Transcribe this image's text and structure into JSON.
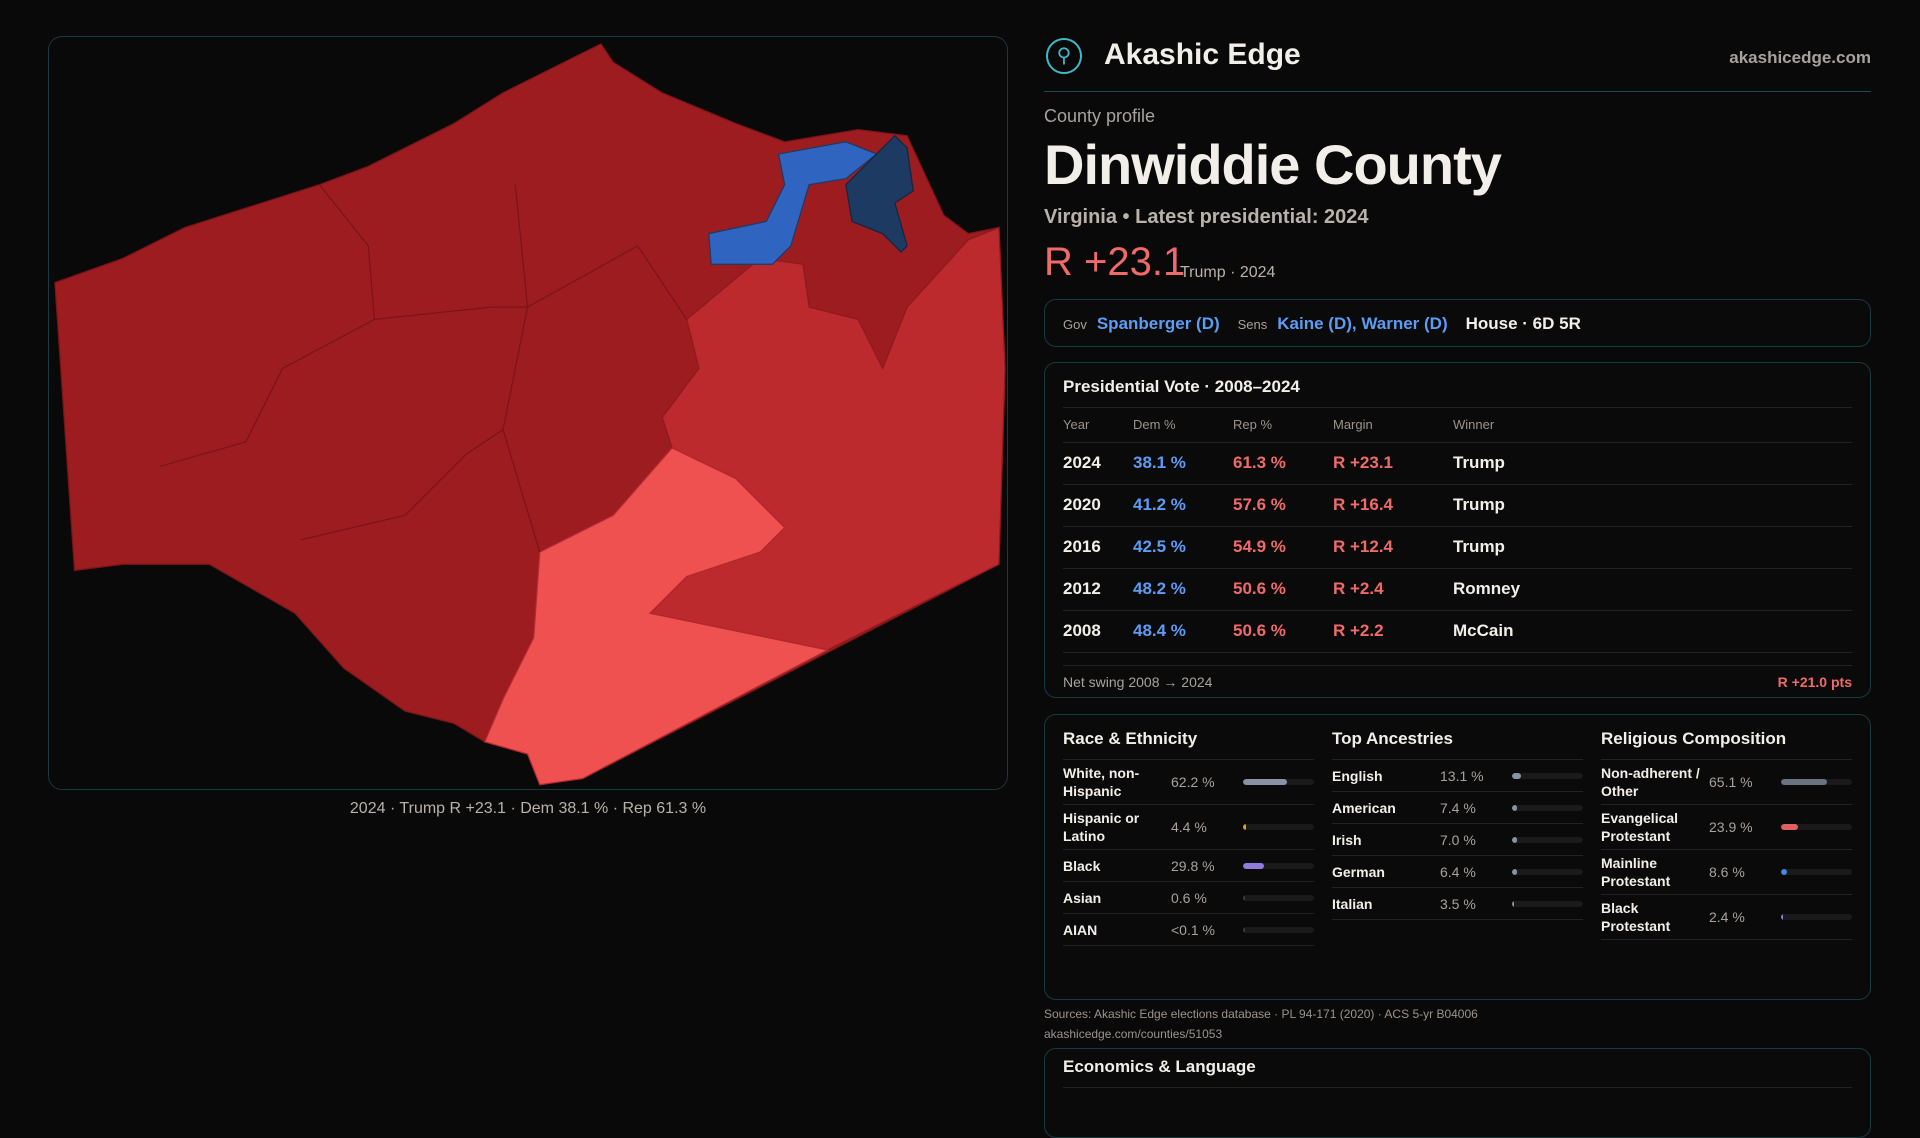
{
  "brand": {
    "name": "Akashic Edge",
    "site": "akashicedge.com",
    "logo_icon": "compass-figure-icon"
  },
  "profile": {
    "kicker": "County profile",
    "title": "Dinwiddie County",
    "subtitle": "Virginia • Latest presidential: 2024",
    "margin": "R +23.1",
    "margin_note": "Trump · 2024"
  },
  "officials": {
    "gov_label": "Gov",
    "gov": "Spanberger (D)",
    "sens_label": "Sens",
    "sens": "Kaine (D), Warner (D)",
    "house": "House · 6D 5R"
  },
  "map": {
    "caption": "2024 · Trump R +23.1 · Dem 38.1 % · Rep 61.3 %",
    "colors": {
      "base": "#9c1c20",
      "mid": "#bd2a2d",
      "light": "#ef5050",
      "blue": "#2f65c0",
      "darkblue": "#1d3a63"
    }
  },
  "presidential": {
    "title": "Presidential Vote · 2008–2024",
    "headers": [
      "Year",
      "Dem %",
      "Rep %",
      "Margin",
      "Winner"
    ],
    "rows": [
      [
        "2024",
        "38.1 %",
        "61.3 %",
        "R +23.1",
        "Trump"
      ],
      [
        "2020",
        "41.2 %",
        "57.6 %",
        "R +16.4",
        "Trump"
      ],
      [
        "2016",
        "42.5 %",
        "54.9 %",
        "R +12.4",
        "Trump"
      ],
      [
        "2012",
        "48.2 %",
        "50.6 %",
        "R +2.4",
        "Romney"
      ],
      [
        "2008",
        "48.4 %",
        "50.6 %",
        "R +2.2",
        "McCain"
      ]
    ],
    "swing_label": "Net swing 2008 → 2024",
    "swing_value": "R +21.0 pts"
  },
  "demographics": [
    {
      "title": "Race & Ethnicity",
      "items": [
        {
          "label": "White, non-Hispanic",
          "value": "62.2 %",
          "pct": 62.2,
          "color": "#8a93a6"
        },
        {
          "label": "Hispanic or Latino",
          "value": "4.4 %",
          "pct": 4.4,
          "color": "#e0a030"
        },
        {
          "label": "Black",
          "value": "29.8 %",
          "pct": 29.8,
          "color": "#8f7ae0"
        },
        {
          "label": "Asian",
          "value": "0.6 %",
          "pct": 0.6,
          "color": "#3a3a3a"
        },
        {
          "label": "AIAN",
          "value": "<0.1 %",
          "pct": 0,
          "color": "#3a3a3a"
        }
      ]
    },
    {
      "title": "Top Ancestries",
      "items": [
        {
          "label": "English",
          "value": "13.1 %",
          "pct": 13.1,
          "color": "#8a93a6"
        },
        {
          "label": "American",
          "value": "7.4 %",
          "pct": 7.4,
          "color": "#8a93a6"
        },
        {
          "label": "Irish",
          "value": "7.0 %",
          "pct": 7.0,
          "color": "#8a93a6"
        },
        {
          "label": "German",
          "value": "6.4 %",
          "pct": 6.4,
          "color": "#8a93a6"
        },
        {
          "label": "Italian",
          "value": "3.5 %",
          "pct": 3.5,
          "color": "#8a93a6"
        }
      ]
    },
    {
      "title": "Religious Composition",
      "items": [
        {
          "label": "Non-adherent / Other",
          "value": "65.1 %",
          "pct": 65.1,
          "color": "#6b7280"
        },
        {
          "label": "Evangelical Protestant",
          "value": "23.9 %",
          "pct": 23.9,
          "color": "#e06060"
        },
        {
          "label": "Mainline Protestant",
          "value": "8.6 %",
          "pct": 8.6,
          "color": "#4a86e0"
        },
        {
          "label": "Black Protestant",
          "value": "2.4 %",
          "pct": 2.4,
          "color": "#8f7ae0"
        }
      ]
    }
  ],
  "sources": {
    "text": "Sources: Akashic Edge elections database · PL 94-171 (2020) · ACS 5-yr B04006",
    "url": "akashicedge.com/counties/51053"
  },
  "economics": {
    "title": "Economics & Language"
  }
}
